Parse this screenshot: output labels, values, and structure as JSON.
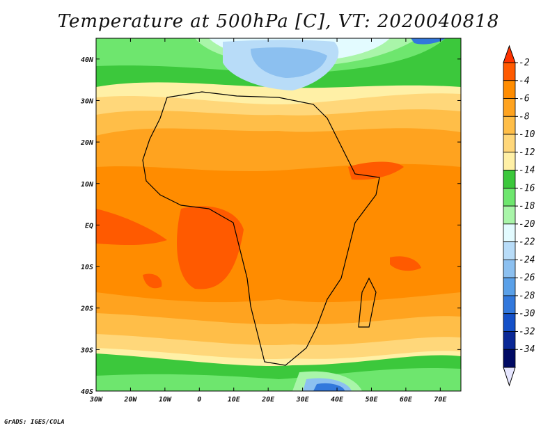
{
  "title": "Temperature at 500hPa [C], VT: 2020040818",
  "credit": "GrADS: IGES/COLA",
  "map": {
    "region": "Africa",
    "variable": "Temperature at 500hPa",
    "units": "C",
    "lon_range": [
      -30,
      76
    ],
    "lat_range": [
      -40,
      45
    ],
    "x_ticks": [
      "30W",
      "20W",
      "10W",
      "0",
      "10E",
      "20E",
      "30E",
      "40E",
      "50E",
      "60E",
      "70E"
    ],
    "y_ticks": [
      "40S",
      "30S",
      "20S",
      "10S",
      "EQ",
      "10N",
      "20N",
      "30N",
      "40N"
    ],
    "features": [
      {
        "name": "cold core over Mediterranean",
        "value_range": "-22 to -20"
      },
      {
        "name": "cold core south of Africa",
        "value_range": "-32 to -24"
      },
      {
        "name": "warm band across equator",
        "value_range": "-6 to -4"
      }
    ]
  },
  "colorbar": {
    "labels": [
      "-2",
      "-4",
      "-6",
      "-8",
      "-10",
      "-12",
      "-14",
      "-16",
      "-18",
      "-20",
      "-22",
      "-24",
      "-26",
      "-28",
      "-30",
      "-32",
      "-34"
    ],
    "colors": [
      "#ff5a00",
      "#ff8c00",
      "#ffa31f",
      "#ffbe48",
      "#ffd77a",
      "#fff0a6",
      "#3cc83c",
      "#6ee66e",
      "#a9f5a9",
      "#e3fbff",
      "#b8dcf8",
      "#8cc0f0",
      "#5aa0e8",
      "#3278dc",
      "#1450c8",
      "#0a2896",
      "#000a64"
    ],
    "top_arrow_color": "#ff3300",
    "bottom_arrow_color": "#e6e6ff"
  }
}
